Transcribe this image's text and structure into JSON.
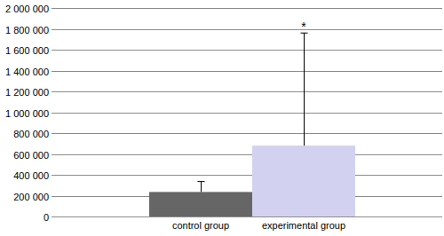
{
  "chart_data": {
    "type": "bar",
    "categories": [
      "control group",
      "experimental group"
    ],
    "values": [
      235000,
      680000
    ],
    "errors": [
      100000,
      1080000
    ],
    "colors": [
      "#666666",
      "#d2d2f0"
    ],
    "ylim": [
      0,
      2000000
    ],
    "yticks": [
      0,
      {
        "value": 200000,
        "label": "200 000"
      },
      {
        "value": 400000,
        "label": "400 000"
      },
      {
        "value": 600000,
        "label": "600 000"
      },
      {
        "value": 800000,
        "label": "800 000"
      },
      {
        "value": 1000000,
        "label": "1 000 000"
      },
      {
        "value": 1200000,
        "label": "1 200 000"
      },
      {
        "value": 1400000,
        "label": "1 400 000"
      },
      {
        "value": 1600000,
        "label": "1 600 000"
      },
      {
        "value": 1800000,
        "label": "1 800 000"
      },
      {
        "value": 2000000,
        "label": "2 000 000"
      }
    ],
    "grid": true,
    "annotations": [
      {
        "text": "*",
        "category": "experimental group"
      }
    ]
  }
}
